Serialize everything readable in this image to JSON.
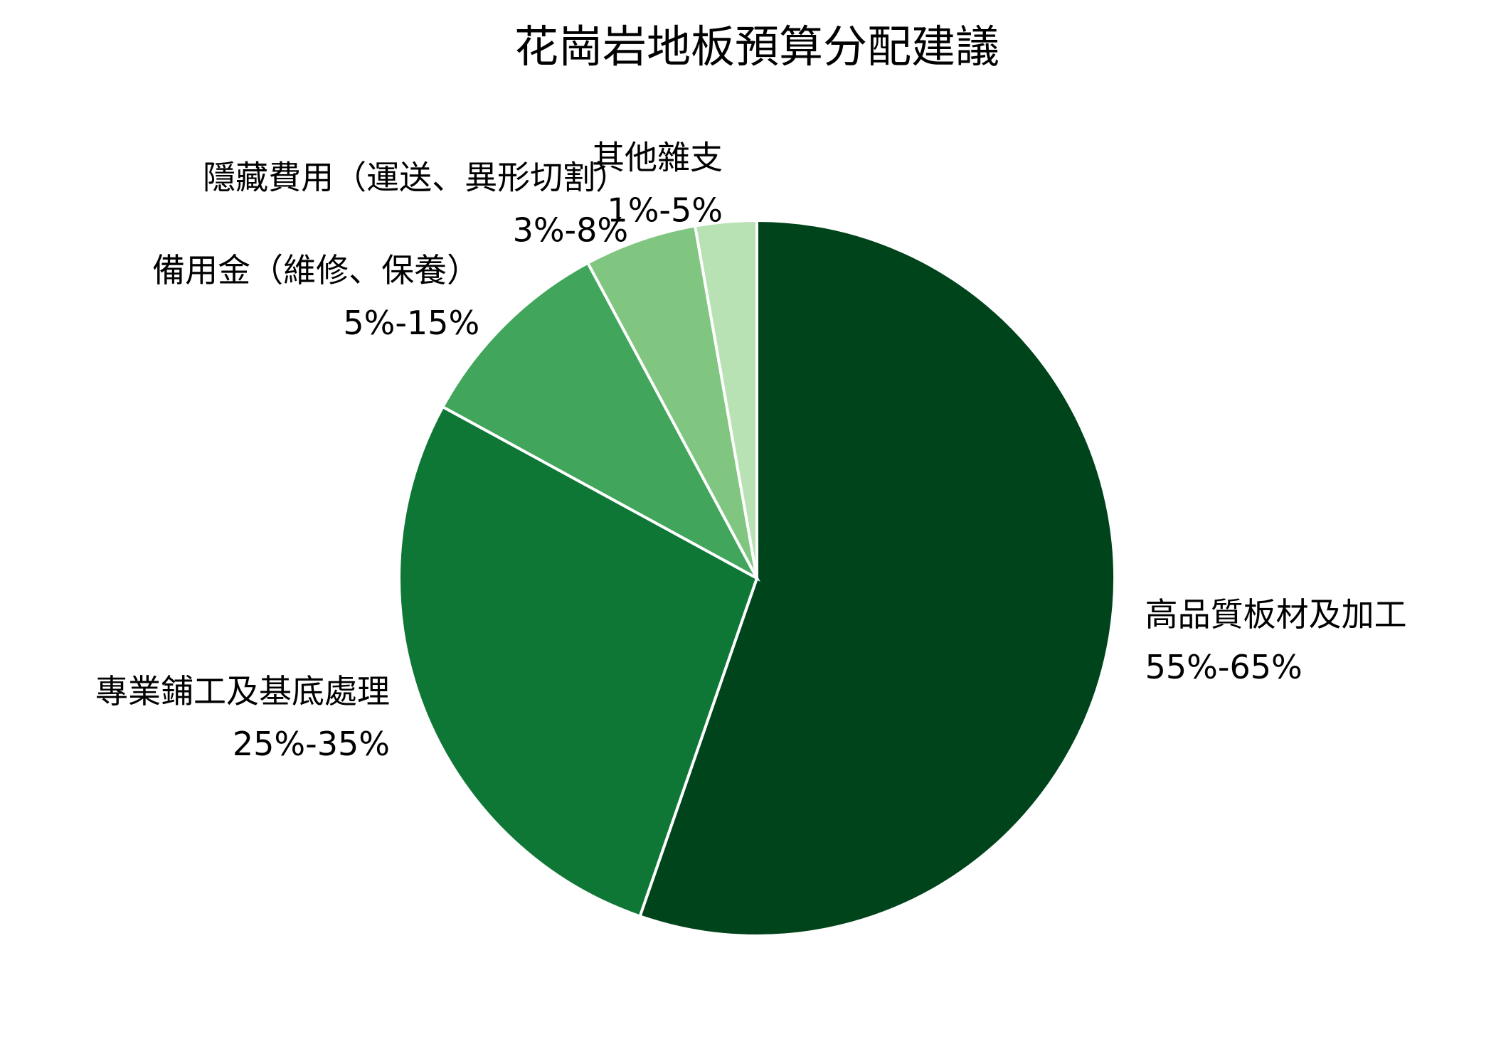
{
  "chart_data": {
    "type": "pie",
    "title": "花崗岩地板預算分配建議",
    "categories": [
      "高品質板材及加工",
      "專業鋪工及基底處理",
      "備用金（維修、保養）",
      "隱藏費用（運送、異形切割）",
      "其他雜支"
    ],
    "values": [
      60,
      30,
      10,
      5.5,
      3
    ],
    "value_labels": [
      "55%-65%",
      "25%-35%",
      "5%-15%",
      "3%-8%",
      "1%-5%"
    ],
    "colors": [
      "#00441b",
      "#0f7735",
      "#41a55b",
      "#80c680",
      "#b8e2b3"
    ]
  }
}
